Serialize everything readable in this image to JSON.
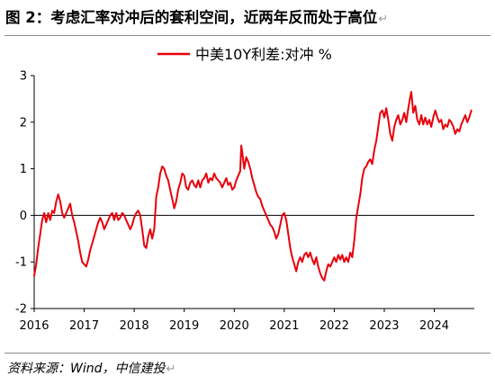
{
  "figure": {
    "title": "图 2：考虑汇率对冲后的套利空间，近两年反而处于高位",
    "return_mark": "↵",
    "source": "资料来源：Wind，中信建投"
  },
  "chart_data": {
    "type": "line",
    "title": "",
    "xlabel": "",
    "ylabel": "",
    "ylim": [
      -2,
      3
    ],
    "xlim": [
      2016.0,
      2024.8
    ],
    "yticks": [
      -2,
      -1,
      0,
      1,
      2,
      3
    ],
    "xticks": [
      "2016",
      "2017",
      "2018",
      "2019",
      "2020",
      "2021",
      "2022",
      "2023",
      "2024"
    ],
    "grid": false,
    "zero_line": true,
    "legend_position": "top-center",
    "series": [
      {
        "name": "中美10Y利差:对冲 %",
        "color": "#e8000b",
        "points": [
          [
            2016.0,
            -1.3
          ],
          [
            2016.04,
            -1.05
          ],
          [
            2016.08,
            -0.7
          ],
          [
            2016.12,
            -0.4
          ],
          [
            2016.16,
            -0.1
          ],
          [
            2016.2,
            0.05
          ],
          [
            2016.24,
            -0.15
          ],
          [
            2016.28,
            0.05
          ],
          [
            2016.32,
            -0.1
          ],
          [
            2016.36,
            0.1
          ],
          [
            2016.4,
            0.05
          ],
          [
            2016.44,
            0.3
          ],
          [
            2016.48,
            0.45
          ],
          [
            2016.52,
            0.3
          ],
          [
            2016.56,
            0.05
          ],
          [
            2016.6,
            -0.05
          ],
          [
            2016.64,
            0.05
          ],
          [
            2016.68,
            0.15
          ],
          [
            2016.72,
            0.25
          ],
          [
            2016.76,
            0.0
          ],
          [
            2016.8,
            -0.15
          ],
          [
            2016.84,
            -0.35
          ],
          [
            2016.88,
            -0.55
          ],
          [
            2016.92,
            -0.8
          ],
          [
            2016.96,
            -1.0
          ],
          [
            2017.0,
            -1.05
          ],
          [
            2017.04,
            -1.1
          ],
          [
            2017.08,
            -0.95
          ],
          [
            2017.12,
            -0.75
          ],
          [
            2017.16,
            -0.6
          ],
          [
            2017.2,
            -0.45
          ],
          [
            2017.24,
            -0.3
          ],
          [
            2017.28,
            -0.15
          ],
          [
            2017.32,
            -0.05
          ],
          [
            2017.36,
            -0.15
          ],
          [
            2017.4,
            -0.3
          ],
          [
            2017.44,
            -0.2
          ],
          [
            2017.48,
            -0.1
          ],
          [
            2017.52,
            0.0
          ],
          [
            2017.56,
            0.05
          ],
          [
            2017.6,
            -0.1
          ],
          [
            2017.64,
            0.05
          ],
          [
            2017.68,
            -0.1
          ],
          [
            2017.72,
            -0.05
          ],
          [
            2017.76,
            0.05
          ],
          [
            2017.8,
            0.0
          ],
          [
            2017.84,
            -0.1
          ],
          [
            2017.88,
            -0.2
          ],
          [
            2017.92,
            -0.3
          ],
          [
            2017.96,
            -0.2
          ],
          [
            2018.0,
            -0.05
          ],
          [
            2018.04,
            0.05
          ],
          [
            2018.08,
            0.1
          ],
          [
            2018.12,
            0.0
          ],
          [
            2018.16,
            -0.3
          ],
          [
            2018.2,
            -0.65
          ],
          [
            2018.24,
            -0.7
          ],
          [
            2018.28,
            -0.45
          ],
          [
            2018.32,
            -0.3
          ],
          [
            2018.36,
            -0.5
          ],
          [
            2018.4,
            -0.3
          ],
          [
            2018.44,
            0.4
          ],
          [
            2018.48,
            0.6
          ],
          [
            2018.52,
            0.9
          ],
          [
            2018.56,
            1.05
          ],
          [
            2018.6,
            1.0
          ],
          [
            2018.64,
            0.85
          ],
          [
            2018.68,
            0.75
          ],
          [
            2018.72,
            0.55
          ],
          [
            2018.76,
            0.35
          ],
          [
            2018.8,
            0.15
          ],
          [
            2018.84,
            0.3
          ],
          [
            2018.88,
            0.55
          ],
          [
            2018.92,
            0.7
          ],
          [
            2018.96,
            0.9
          ],
          [
            2019.0,
            0.85
          ],
          [
            2019.04,
            0.6
          ],
          [
            2019.08,
            0.55
          ],
          [
            2019.12,
            0.7
          ],
          [
            2019.16,
            0.75
          ],
          [
            2019.2,
            0.65
          ],
          [
            2019.24,
            0.6
          ],
          [
            2019.28,
            0.75
          ],
          [
            2019.32,
            0.6
          ],
          [
            2019.36,
            0.75
          ],
          [
            2019.4,
            0.8
          ],
          [
            2019.44,
            0.9
          ],
          [
            2019.48,
            0.7
          ],
          [
            2019.52,
            0.8
          ],
          [
            2019.56,
            0.75
          ],
          [
            2019.6,
            0.9
          ],
          [
            2019.64,
            0.8
          ],
          [
            2019.68,
            0.75
          ],
          [
            2019.72,
            0.7
          ],
          [
            2019.76,
            0.6
          ],
          [
            2019.8,
            0.7
          ],
          [
            2019.84,
            0.8
          ],
          [
            2019.88,
            0.65
          ],
          [
            2019.92,
            0.7
          ],
          [
            2019.96,
            0.55
          ],
          [
            2020.0,
            0.6
          ],
          [
            2020.04,
            0.75
          ],
          [
            2020.08,
            0.85
          ],
          [
            2020.12,
            0.95
          ],
          [
            2020.14,
            1.5
          ],
          [
            2020.16,
            1.35
          ],
          [
            2020.2,
            1.0
          ],
          [
            2020.24,
            1.25
          ],
          [
            2020.28,
            1.15
          ],
          [
            2020.32,
            1.0
          ],
          [
            2020.36,
            0.8
          ],
          [
            2020.4,
            0.65
          ],
          [
            2020.44,
            0.5
          ],
          [
            2020.48,
            0.4
          ],
          [
            2020.52,
            0.35
          ],
          [
            2020.56,
            0.2
          ],
          [
            2020.6,
            0.1
          ],
          [
            2020.64,
            0.0
          ],
          [
            2020.68,
            -0.1
          ],
          [
            2020.72,
            -0.2
          ],
          [
            2020.76,
            -0.25
          ],
          [
            2020.8,
            -0.35
          ],
          [
            2020.84,
            -0.5
          ],
          [
            2020.88,
            -0.4
          ],
          [
            2020.92,
            -0.2
          ],
          [
            2020.96,
            0.0
          ],
          [
            2021.0,
            0.05
          ],
          [
            2021.04,
            -0.1
          ],
          [
            2021.08,
            -0.4
          ],
          [
            2021.12,
            -0.7
          ],
          [
            2021.16,
            -0.9
          ],
          [
            2021.2,
            -1.05
          ],
          [
            2021.24,
            -1.2
          ],
          [
            2021.28,
            -1.0
          ],
          [
            2021.32,
            -0.9
          ],
          [
            2021.36,
            -1.0
          ],
          [
            2021.4,
            -0.85
          ],
          [
            2021.44,
            -0.8
          ],
          [
            2021.48,
            -0.9
          ],
          [
            2021.52,
            -0.8
          ],
          [
            2021.56,
            -0.95
          ],
          [
            2021.6,
            -1.05
          ],
          [
            2021.64,
            -0.9
          ],
          [
            2021.68,
            -1.1
          ],
          [
            2021.72,
            -1.25
          ],
          [
            2021.76,
            -1.35
          ],
          [
            2021.8,
            -1.4
          ],
          [
            2021.84,
            -1.2
          ],
          [
            2021.88,
            -1.05
          ],
          [
            2021.92,
            -1.1
          ],
          [
            2021.96,
            -1.0
          ],
          [
            2022.0,
            -0.9
          ],
          [
            2022.04,
            -1.0
          ],
          [
            2022.08,
            -0.85
          ],
          [
            2022.12,
            -0.95
          ],
          [
            2022.16,
            -0.85
          ],
          [
            2022.2,
            -1.0
          ],
          [
            2022.24,
            -0.9
          ],
          [
            2022.28,
            -1.0
          ],
          [
            2022.32,
            -0.8
          ],
          [
            2022.36,
            -0.9
          ],
          [
            2022.4,
            -0.55
          ],
          [
            2022.44,
            -0.05
          ],
          [
            2022.48,
            0.2
          ],
          [
            2022.52,
            0.45
          ],
          [
            2022.56,
            0.8
          ],
          [
            2022.6,
            1.0
          ],
          [
            2022.64,
            1.05
          ],
          [
            2022.68,
            1.15
          ],
          [
            2022.72,
            1.2
          ],
          [
            2022.76,
            1.1
          ],
          [
            2022.8,
            1.4
          ],
          [
            2022.84,
            1.6
          ],
          [
            2022.88,
            1.9
          ],
          [
            2022.92,
            2.2
          ],
          [
            2022.96,
            2.25
          ],
          [
            2023.0,
            2.1
          ],
          [
            2023.04,
            2.3
          ],
          [
            2023.08,
            2.05
          ],
          [
            2023.12,
            1.75
          ],
          [
            2023.16,
            1.6
          ],
          [
            2023.2,
            1.9
          ],
          [
            2023.24,
            2.05
          ],
          [
            2023.28,
            2.15
          ],
          [
            2023.32,
            1.95
          ],
          [
            2023.36,
            2.05
          ],
          [
            2023.4,
            2.2
          ],
          [
            2023.44,
            2.0
          ],
          [
            2023.48,
            2.3
          ],
          [
            2023.52,
            2.55
          ],
          [
            2023.54,
            2.65
          ],
          [
            2023.58,
            2.2
          ],
          [
            2023.62,
            2.35
          ],
          [
            2023.66,
            2.05
          ],
          [
            2023.7,
            1.95
          ],
          [
            2023.74,
            2.15
          ],
          [
            2023.78,
            1.95
          ],
          [
            2023.82,
            2.1
          ],
          [
            2023.86,
            1.95
          ],
          [
            2023.9,
            2.05
          ],
          [
            2023.94,
            1.9
          ],
          [
            2023.98,
            2.1
          ],
          [
            2024.02,
            2.25
          ],
          [
            2024.06,
            2.1
          ],
          [
            2024.1,
            2.0
          ],
          [
            2024.14,
            2.05
          ],
          [
            2024.18,
            1.85
          ],
          [
            2024.22,
            1.95
          ],
          [
            2024.26,
            1.9
          ],
          [
            2024.3,
            2.05
          ],
          [
            2024.34,
            2.0
          ],
          [
            2024.38,
            1.9
          ],
          [
            2024.42,
            1.75
          ],
          [
            2024.46,
            1.85
          ],
          [
            2024.5,
            1.8
          ],
          [
            2024.54,
            1.95
          ],
          [
            2024.58,
            2.05
          ],
          [
            2024.62,
            2.15
          ],
          [
            2024.66,
            2.0
          ],
          [
            2024.7,
            2.1
          ],
          [
            2024.74,
            2.25
          ]
        ]
      }
    ]
  }
}
